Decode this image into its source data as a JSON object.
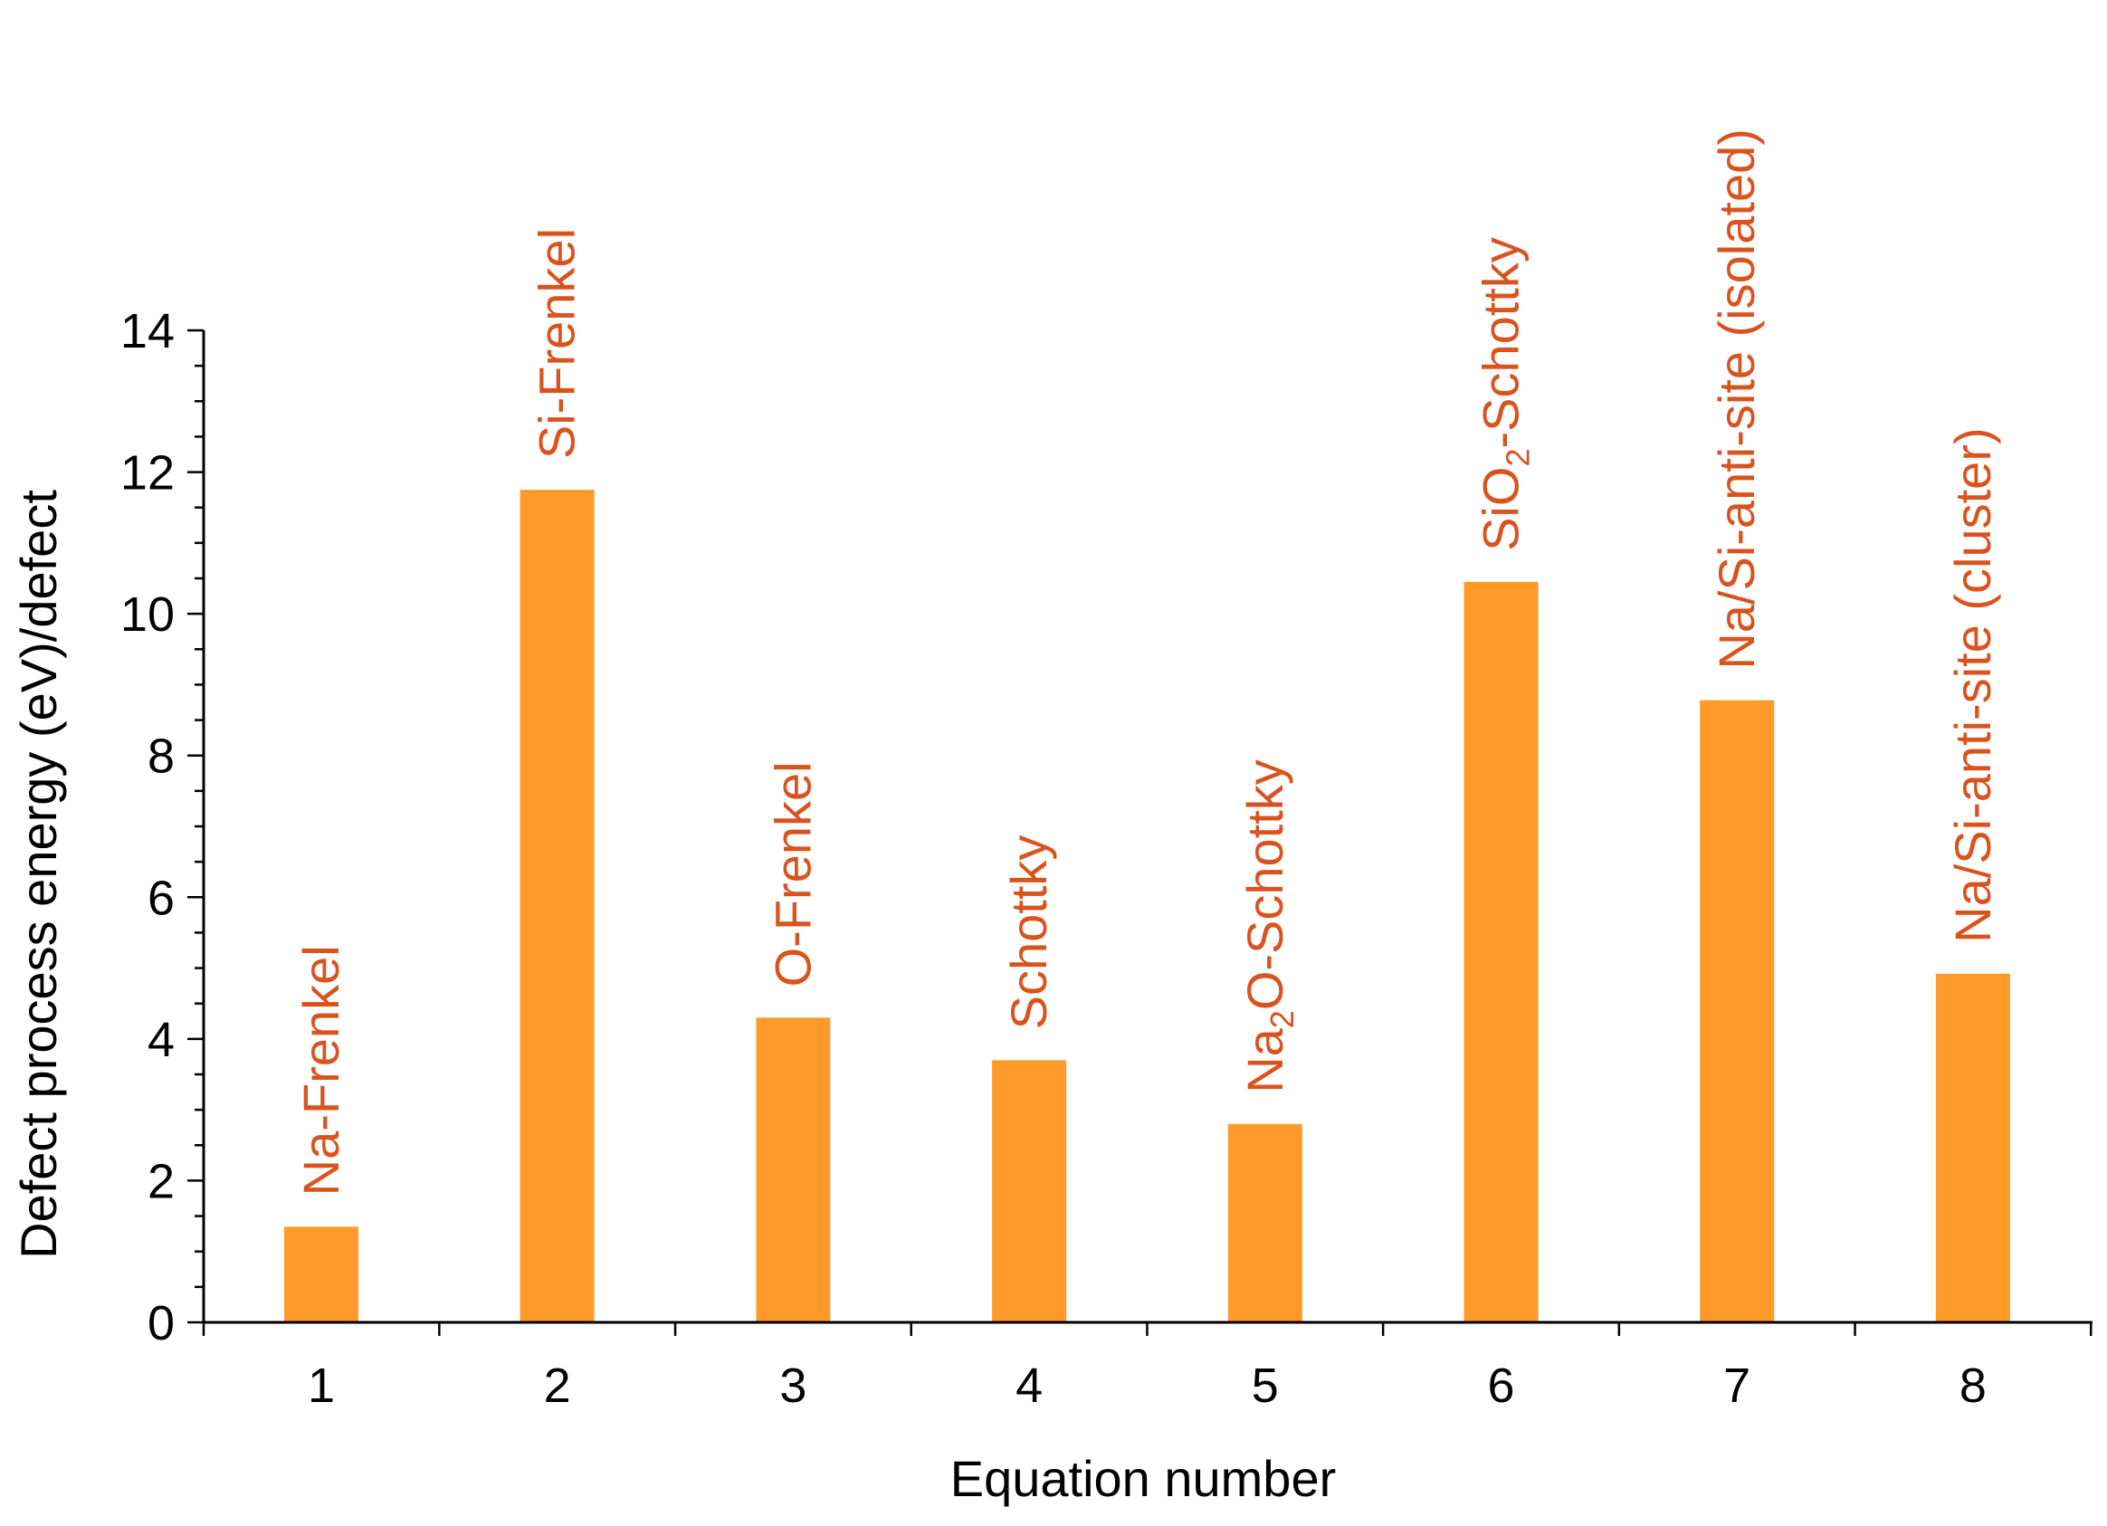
{
  "chart_data": {
    "type": "bar",
    "title": "",
    "xlabel": "Equation number",
    "ylabel": "Defect process energy (eV)/defect",
    "ylim": [
      0,
      14
    ],
    "yticks": [
      "0",
      "2",
      "4",
      "6",
      "8",
      "10",
      "12",
      "14"
    ],
    "categories": [
      "1",
      "2",
      "3",
      "4",
      "5",
      "6",
      "7",
      "8"
    ],
    "values": [
      1.35,
      11.75,
      4.3,
      3.7,
      2.8,
      10.45,
      8.78,
      4.92
    ],
    "bar_labels": [
      {
        "parts": [
          {
            "t": "Na-Frenkel",
            "sub": false
          }
        ]
      },
      {
        "parts": [
          {
            "t": "Si-Frenkel",
            "sub": false
          }
        ]
      },
      {
        "parts": [
          {
            "t": "O-Frenkel",
            "sub": false
          }
        ]
      },
      {
        "parts": [
          {
            "t": "Schottky",
            "sub": false
          }
        ]
      },
      {
        "parts": [
          {
            "t": "Na",
            "sub": false
          },
          {
            "t": "2",
            "sub": true
          },
          {
            "t": "O-Schottky",
            "sub": false
          }
        ]
      },
      {
        "parts": [
          {
            "t": "SiO",
            "sub": false
          },
          {
            "t": "2",
            "sub": true
          },
          {
            "t": "-Schottky",
            "sub": false
          }
        ]
      },
      {
        "parts": [
          {
            "t": "Na/Si-anti-site (isolated)",
            "sub": false
          }
        ]
      },
      {
        "parts": [
          {
            "t": "Na/Si-anti-site (cluster)",
            "sub": false
          }
        ]
      }
    ],
    "grid": false,
    "legend": "none",
    "colors": {
      "bar": "#FF9A2A",
      "label": "#D9531E",
      "axis": "#000000"
    }
  }
}
